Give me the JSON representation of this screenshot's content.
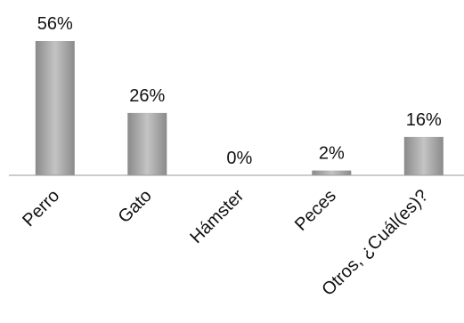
{
  "chart_data": {
    "type": "bar",
    "title": "",
    "xlabel": "",
    "ylabel": "",
    "categories": [
      "Perro",
      "Gato",
      "Hámster",
      "Peces",
      "Otros, ¿Cuál(es)?"
    ],
    "values": [
      56,
      26,
      0,
      2,
      16
    ],
    "data_labels": [
      "56%",
      "26%",
      "0%",
      "2%",
      "16%"
    ],
    "unit": "%",
    "ylim": [
      0,
      56
    ],
    "grid": false,
    "legend": "none",
    "colors": {
      "bar_edge": "#8a8a8a",
      "bar_center": "#c4c4c4",
      "axis": "#9a9a9a",
      "text": "#111111"
    }
  }
}
